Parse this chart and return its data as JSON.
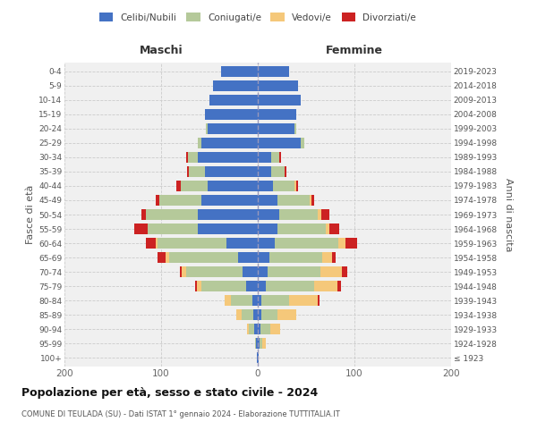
{
  "age_groups": [
    "100+",
    "95-99",
    "90-94",
    "85-89",
    "80-84",
    "75-79",
    "70-74",
    "65-69",
    "60-64",
    "55-59",
    "50-54",
    "45-49",
    "40-44",
    "35-39",
    "30-34",
    "25-29",
    "20-24",
    "15-19",
    "10-14",
    "5-9",
    "0-4"
  ],
  "birth_years": [
    "≤ 1923",
    "1924-1928",
    "1929-1933",
    "1934-1938",
    "1939-1943",
    "1944-1948",
    "1949-1953",
    "1954-1958",
    "1959-1963",
    "1964-1968",
    "1969-1973",
    "1974-1978",
    "1979-1983",
    "1984-1988",
    "1989-1993",
    "1994-1998",
    "1999-2003",
    "2004-2008",
    "2009-2013",
    "2014-2018",
    "2019-2023"
  ],
  "males": {
    "celibi": [
      1,
      2,
      4,
      5,
      6,
      12,
      16,
      20,
      32,
      62,
      62,
      58,
      52,
      55,
      62,
      58,
      52,
      55,
      50,
      46,
      38
    ],
    "coniugati": [
      0,
      1,
      5,
      12,
      22,
      46,
      58,
      72,
      72,
      52,
      54,
      44,
      28,
      16,
      10,
      4,
      2,
      0,
      0,
      0,
      0
    ],
    "vedovi": [
      0,
      0,
      2,
      5,
      6,
      5,
      5,
      3,
      2,
      0,
      0,
      0,
      0,
      0,
      0,
      0,
      0,
      0,
      0,
      0,
      0
    ],
    "divorziati": [
      0,
      0,
      0,
      0,
      0,
      2,
      2,
      9,
      10,
      14,
      4,
      4,
      4,
      2,
      2,
      0,
      0,
      0,
      0,
      0,
      0
    ]
  },
  "females": {
    "nubili": [
      1,
      2,
      3,
      4,
      4,
      8,
      10,
      12,
      18,
      20,
      22,
      20,
      16,
      14,
      14,
      44,
      38,
      40,
      44,
      42,
      32
    ],
    "coniugate": [
      0,
      3,
      10,
      16,
      28,
      50,
      55,
      55,
      65,
      50,
      40,
      34,
      22,
      14,
      8,
      4,
      2,
      0,
      0,
      0,
      0
    ],
    "vedove": [
      0,
      3,
      10,
      20,
      30,
      24,
      22,
      10,
      8,
      4,
      4,
      2,
      2,
      0,
      0,
      0,
      0,
      0,
      0,
      0,
      0
    ],
    "divorziate": [
      0,
      0,
      0,
      0,
      2,
      4,
      6,
      4,
      12,
      10,
      8,
      2,
      2,
      2,
      2,
      0,
      0,
      0,
      0,
      0,
      0
    ]
  },
  "colors": {
    "celibi": "#4472c4",
    "coniugati": "#b5c99a",
    "vedovi": "#f5c87a",
    "divorziati": "#cc2222"
  },
  "title": "Popolazione per età, sesso e stato civile - 2024",
  "subtitle": "COMUNE DI TEULADA (SU) - Dati ISTAT 1° gennaio 2024 - Elaborazione TUTTITALIA.IT",
  "ylabel_left": "Fasce di età",
  "ylabel_right": "Anni di nascita",
  "label_maschi": "Maschi",
  "label_femmine": "Femmine",
  "xlim": 200,
  "legend_labels": [
    "Celibi/Nubili",
    "Coniugati/e",
    "Vedovi/e",
    "Divorziati/e"
  ],
  "bg_color": "#f0f0f0",
  "grid_color": "#cccccc"
}
